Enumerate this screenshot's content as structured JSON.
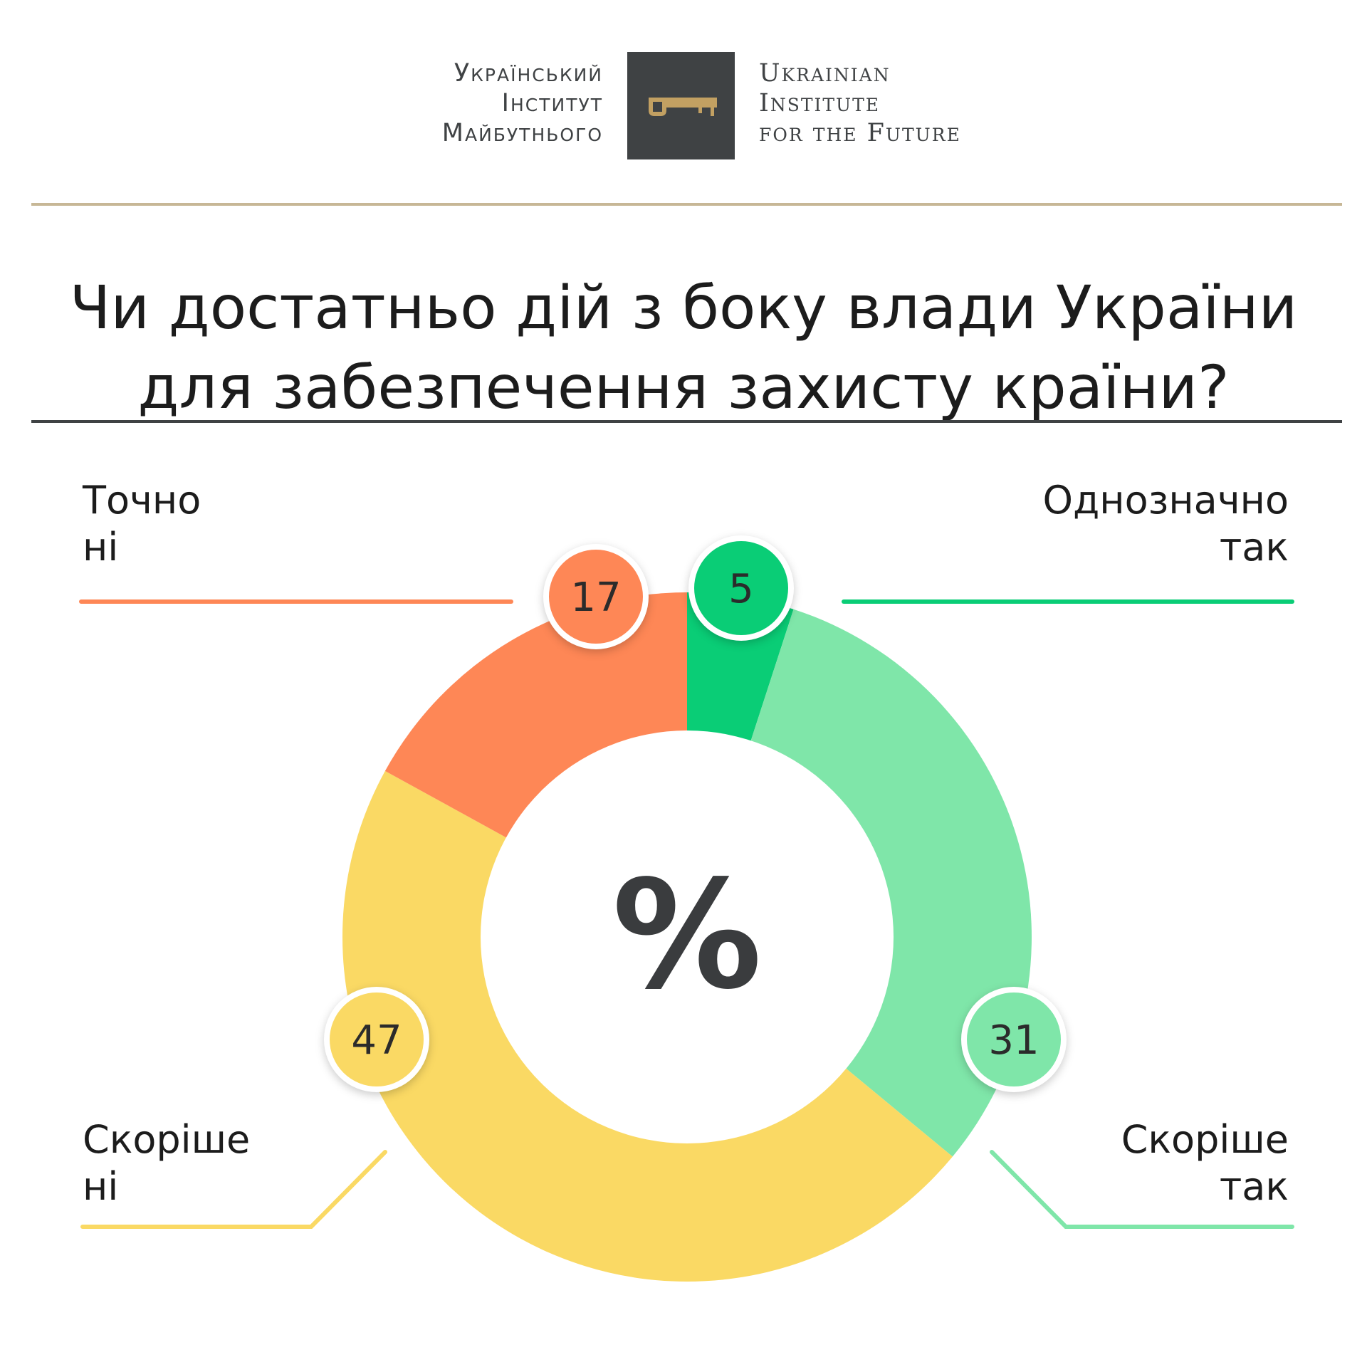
{
  "logo": {
    "ua_lines": [
      "Український",
      "Інститут",
      "Майбутнього"
    ],
    "en_lines": [
      "Ukrainian",
      "Institute",
      "for the Future"
    ],
    "icon": "key-icon",
    "box_color": "#3f4244",
    "key_color": "#c2a062"
  },
  "title_lines": [
    "Чи достатньо дій з боку влади України",
    "для забезпечення захисту країни?"
  ],
  "chart_data": {
    "type": "pie",
    "center_label": "%",
    "slices": [
      {
        "label_lines": [
          "Однозначно",
          "так"
        ],
        "value": 5,
        "color": "#0acd76"
      },
      {
        "label_lines": [
          "Скоріше",
          "так"
        ],
        "value": 31,
        "color": "#7fe6a9"
      },
      {
        "label_lines": [
          "Скоріше",
          "ні"
        ],
        "value": 47,
        "color": "#fad964"
      },
      {
        "label_lines": [
          "Точно",
          "ні"
        ],
        "value": 17,
        "color": "#fe8756"
      }
    ]
  }
}
